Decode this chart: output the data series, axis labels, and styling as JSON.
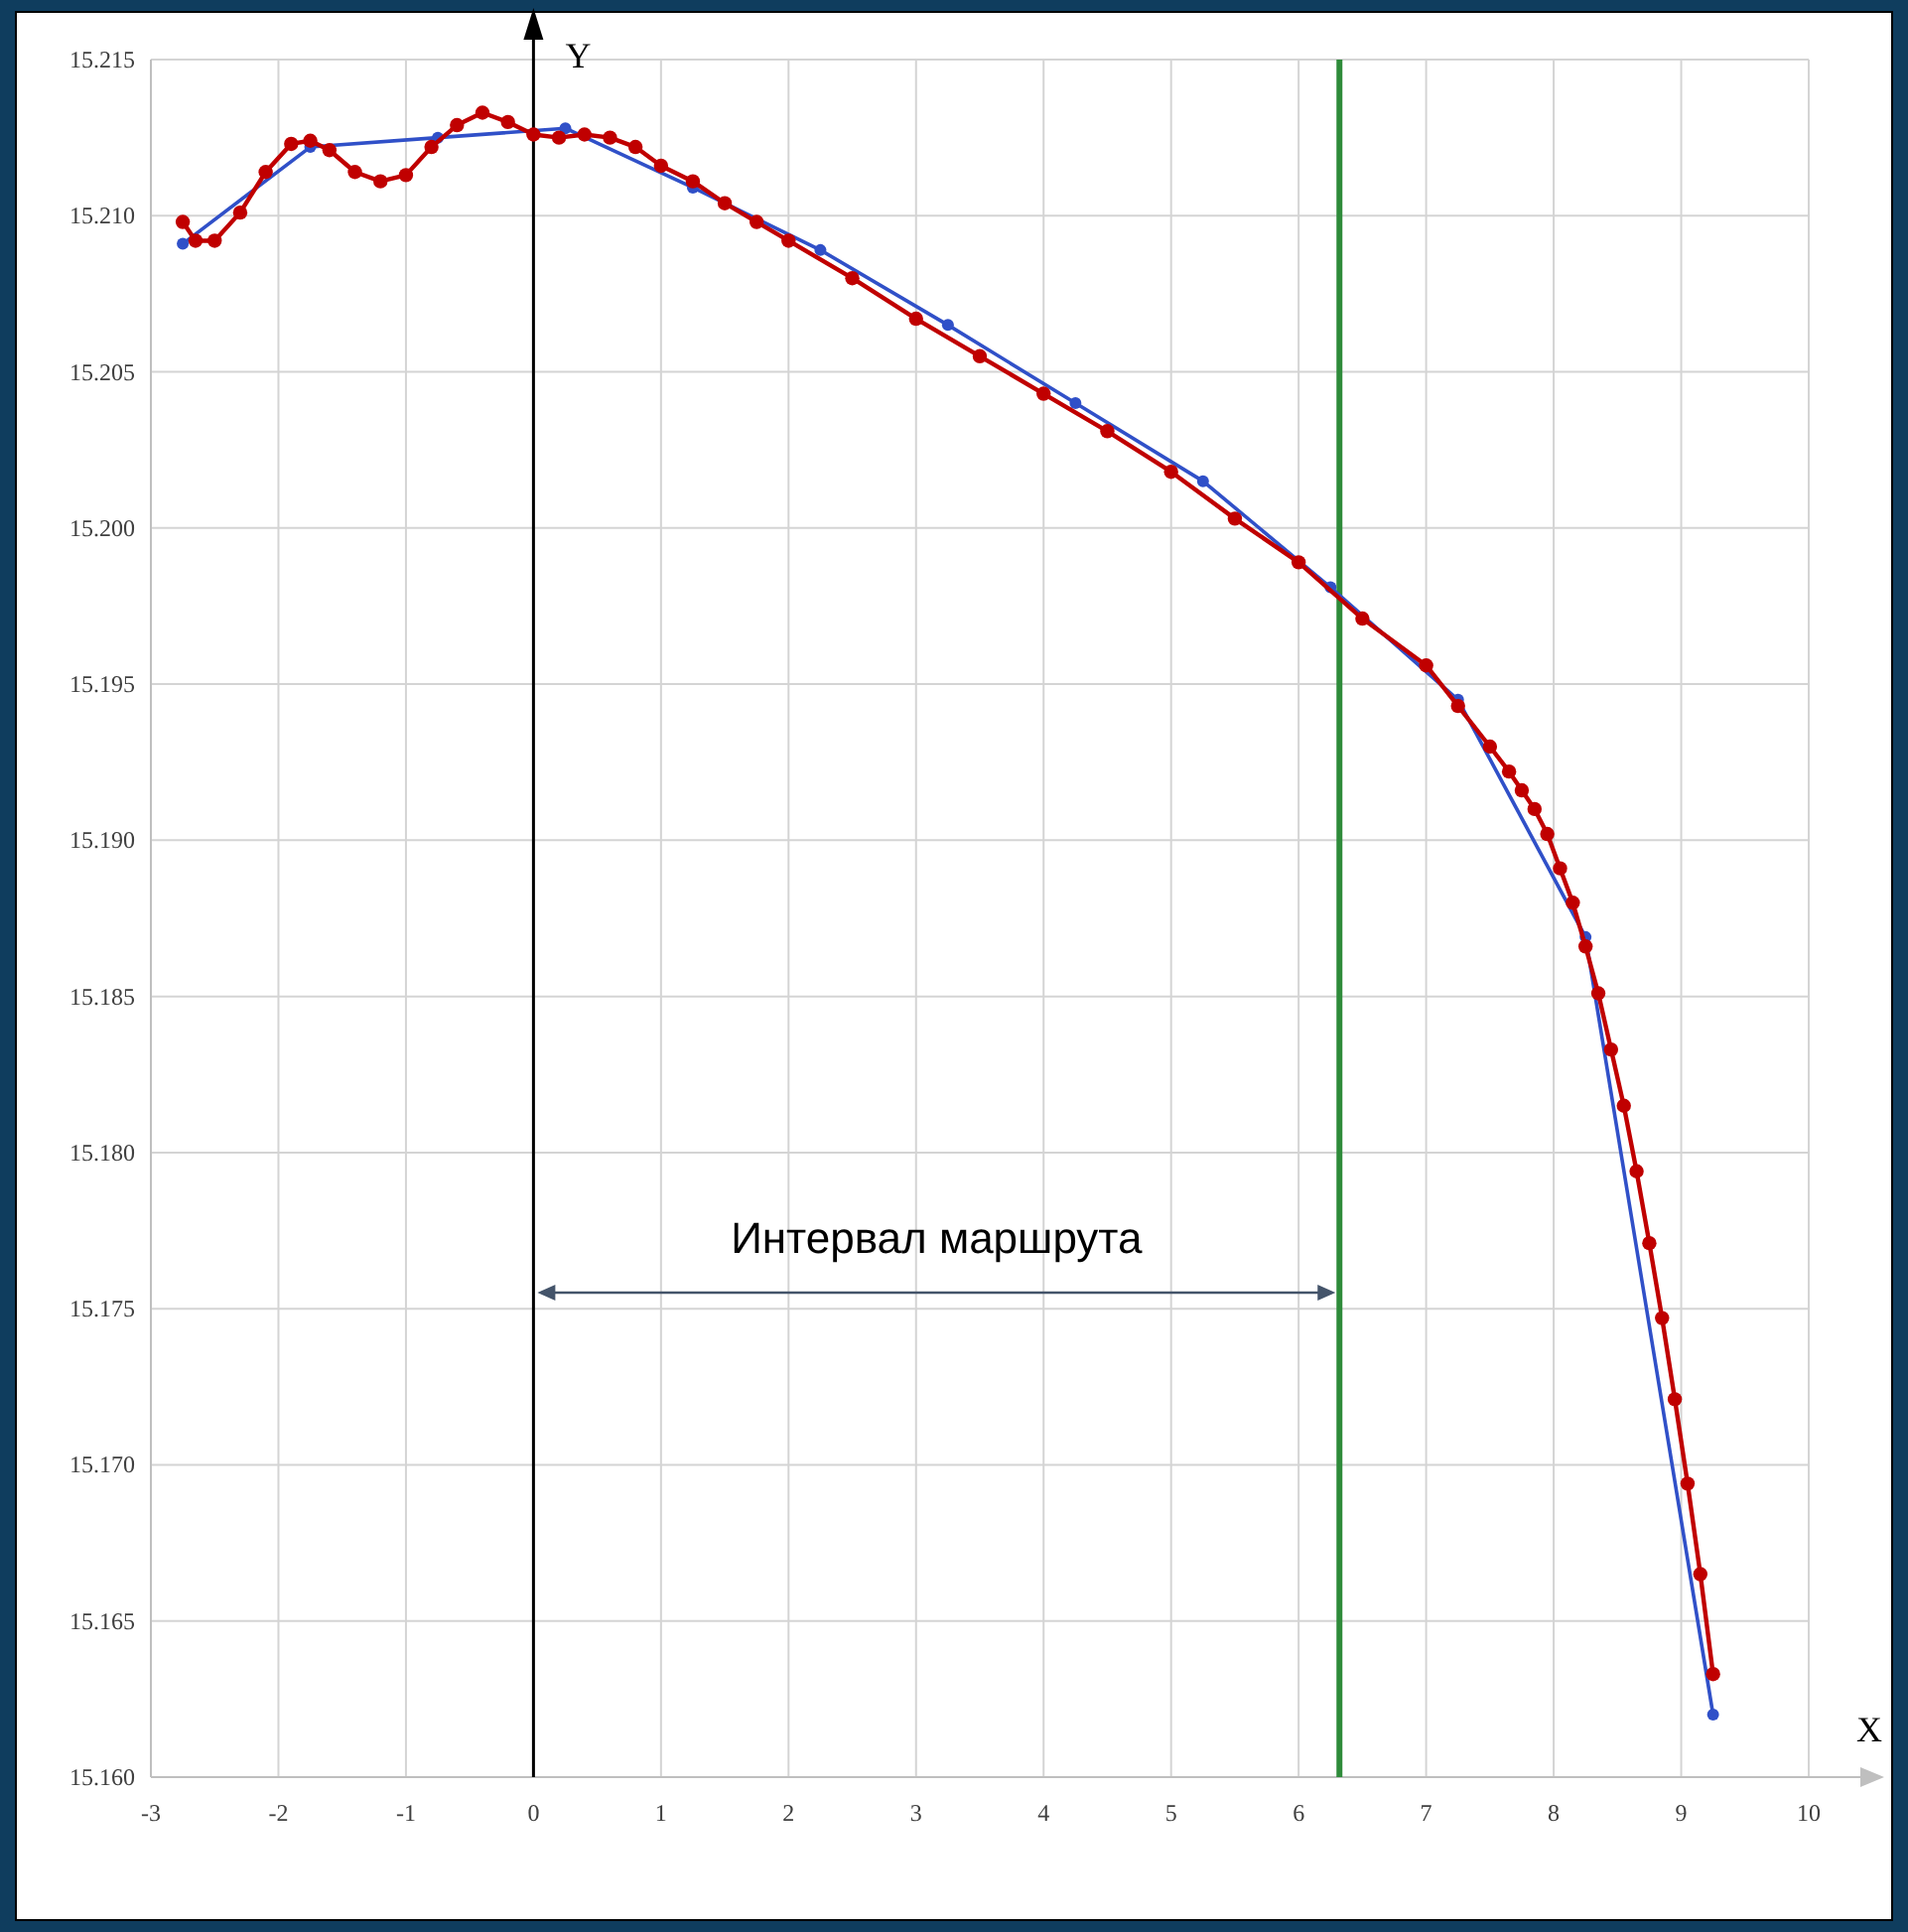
{
  "chart_data": {
    "type": "line",
    "xlabel": "X",
    "ylabel": "Y",
    "xlim": [
      -3,
      10
    ],
    "ylim": [
      15.16,
      15.215
    ],
    "xticks": [
      -3,
      -2,
      -1,
      0,
      1,
      2,
      3,
      4,
      5,
      6,
      7,
      8,
      9,
      10
    ],
    "yticks": [
      {
        "value": 15.16,
        "label": "15.160"
      },
      {
        "value": 15.165,
        "label": "15.165"
      },
      {
        "value": 15.17,
        "label": "15.170"
      },
      {
        "value": 15.175,
        "label": "15.175"
      },
      {
        "value": 15.18,
        "label": "15.180"
      },
      {
        "value": 15.185,
        "label": "15.185"
      },
      {
        "value": 15.19,
        "label": "15.190"
      },
      {
        "value": 15.195,
        "label": "15.195"
      },
      {
        "value": 15.2,
        "label": "15.200"
      },
      {
        "value": 15.205,
        "label": "15.205"
      },
      {
        "value": 15.21,
        "label": "15.210"
      },
      {
        "value": 15.215,
        "label": "15.215"
      }
    ],
    "grid": true,
    "marker": "circle",
    "line_style": "solid",
    "series": [
      {
        "color": "#3050c8",
        "x": [
          -2.75,
          -1.75,
          -0.75,
          0.25,
          1.25,
          2.25,
          3.25,
          4.25,
          5.25,
          6.25,
          7.25,
          8.25,
          9.25
        ],
        "values": [
          15.2091,
          15.2122,
          15.2125,
          15.2128,
          15.2109,
          15.2089,
          15.2065,
          15.204,
          15.2015,
          15.1981,
          15.1945,
          15.1869,
          15.162
        ]
      },
      {
        "color": "#c00000",
        "x": [
          -2.75,
          -2.65,
          -2.5,
          -2.3,
          -2.1,
          -1.9,
          -1.75,
          -1.6,
          -1.4,
          -1.2,
          -1,
          -0.8,
          -0.6,
          -0.4,
          -0.2,
          0,
          0.2,
          0.4,
          0.6,
          0.8,
          1,
          1.25,
          1.5,
          1.75,
          2,
          2.5,
          3,
          3.5,
          4,
          4.5,
          5,
          5.5,
          6,
          6.5,
          7,
          7.25,
          7.5,
          7.65,
          7.75,
          7.85,
          7.95,
          8.05,
          8.15,
          8.25,
          8.35,
          8.45,
          8.55,
          8.65,
          8.75,
          8.85,
          8.95,
          9.05,
          9.15,
          9.25
        ],
        "values": [
          15.2098,
          15.2092,
          15.2092,
          15.2101,
          15.2114,
          15.2123,
          15.2124,
          15.2121,
          15.2114,
          15.2111,
          15.2113,
          15.2122,
          15.2129,
          15.2133,
          15.213,
          15.2126,
          15.2125,
          15.2126,
          15.2125,
          15.2122,
          15.2116,
          15.2111,
          15.2104,
          15.2098,
          15.2092,
          15.208,
          15.2067,
          15.2055,
          15.2043,
          15.2031,
          15.2018,
          15.2003,
          15.1989,
          15.1971,
          15.1956,
          15.1943,
          15.193,
          15.1922,
          15.1916,
          15.191,
          15.1902,
          15.1891,
          15.188,
          15.1866,
          15.1851,
          15.1833,
          15.1815,
          15.1794,
          15.1771,
          15.1747,
          15.1721,
          15.1694,
          15.1665,
          15.1633
        ]
      }
    ],
    "ref_lines": [
      {
        "axis": "x",
        "value": 0,
        "color": "#000000"
      },
      {
        "axis": "x",
        "value": 6.32,
        "color": "#2e8b3a"
      }
    ],
    "annotations": [
      "Интервал маршрута"
    ]
  }
}
